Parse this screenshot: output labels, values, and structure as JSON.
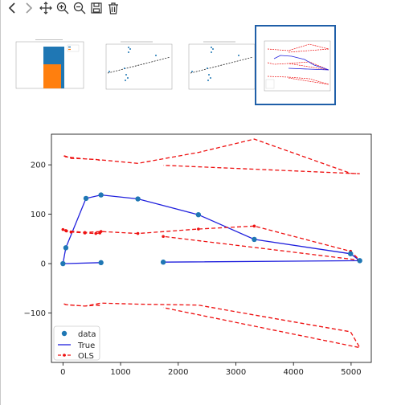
{
  "toolbar": {
    "buttons": [
      {
        "name": "back-icon"
      },
      {
        "name": "forward-icon"
      },
      {
        "name": "pan-icon"
      },
      {
        "name": "zoom-in-icon"
      },
      {
        "name": "zoom-out-icon"
      },
      {
        "name": "save-icon"
      },
      {
        "name": "delete-icon"
      }
    ]
  },
  "thumbnails": [
    {
      "name": "thumbnail-histogram",
      "selected": false
    },
    {
      "name": "thumbnail-scatter-fit-1",
      "selected": false
    },
    {
      "name": "thumbnail-scatter-fit-2",
      "selected": false
    },
    {
      "name": "thumbnail-ols-lines",
      "selected": true
    }
  ],
  "colors": {
    "data": "#1f77b4",
    "true_line": "#2020dd",
    "ols": "#ee1111",
    "selection_border": "#1f5fa8",
    "hist_blue": "#1f77b4",
    "hist_orange": "#ff7f0e"
  },
  "chart_data": {
    "type": "line",
    "xlim": [
      -200,
      5350
    ],
    "ylim": [
      -200,
      262
    ],
    "xticks": [
      0,
      1000,
      2000,
      3000,
      4000,
      5000
    ],
    "xtick_labels": [
      "0",
      "1000",
      "2000",
      "3000",
      "4000",
      "5000"
    ],
    "yticks": [
      -100,
      0,
      100,
      200
    ],
    "ytick_labels": [
      "−100",
      "0",
      "100",
      "200"
    ],
    "legend_position": "lower-left",
    "series": [
      {
        "name": "data",
        "style": "markers",
        "x": [
          0,
          50,
          400,
          660,
          1300,
          2350,
          3320,
          4990,
          5150,
          1740,
          660
        ],
        "y": [
          0,
          32,
          132,
          139,
          131,
          99,
          49,
          20,
          6,
          3,
          2
        ]
      },
      {
        "name": "True",
        "style": "solid",
        "x": [
          660,
          0,
          50,
          400,
          660,
          1300,
          2350,
          3320,
          4990,
          5150,
          1740
        ],
        "y": [
          2,
          0,
          32,
          132,
          139,
          131,
          99,
          49,
          20,
          6,
          3
        ]
      },
      {
        "name": "OLS",
        "style": "dashed-markers",
        "x": [
          640,
          570,
          380,
          140,
          60,
          0,
          50,
          380,
          660,
          1300,
          2350,
          3320,
          4990,
          5150,
          1740
        ],
        "y": [
          62,
          61,
          62,
          64,
          66,
          69,
          67,
          63,
          65,
          61,
          70,
          76,
          25,
          7,
          55
        ]
      },
      {
        "name": "",
        "style": "dashed",
        "x": [
          640,
          580,
          380,
          140,
          60,
          0,
          50,
          380,
          660,
          1300,
          2350,
          3320,
          4990,
          5150,
          1740
        ],
        "y": [
          209,
          211,
          212,
          213,
          217,
          219,
          216,
          212,
          210,
          203,
          225,
          252,
          183,
          182,
          199
        ]
      },
      {
        "name": "",
        "style": "dashed",
        "x": [
          640,
          580,
          380,
          140,
          60,
          0,
          50,
          380,
          660,
          1300,
          2350,
          3320,
          4990,
          5150,
          1740
        ],
        "y": [
          -85,
          -84,
          -86,
          -84,
          -83,
          -81,
          -83,
          -86,
          -80,
          -82,
          -84,
          -104,
          -138,
          -170,
          -89
        ]
      }
    ]
  }
}
